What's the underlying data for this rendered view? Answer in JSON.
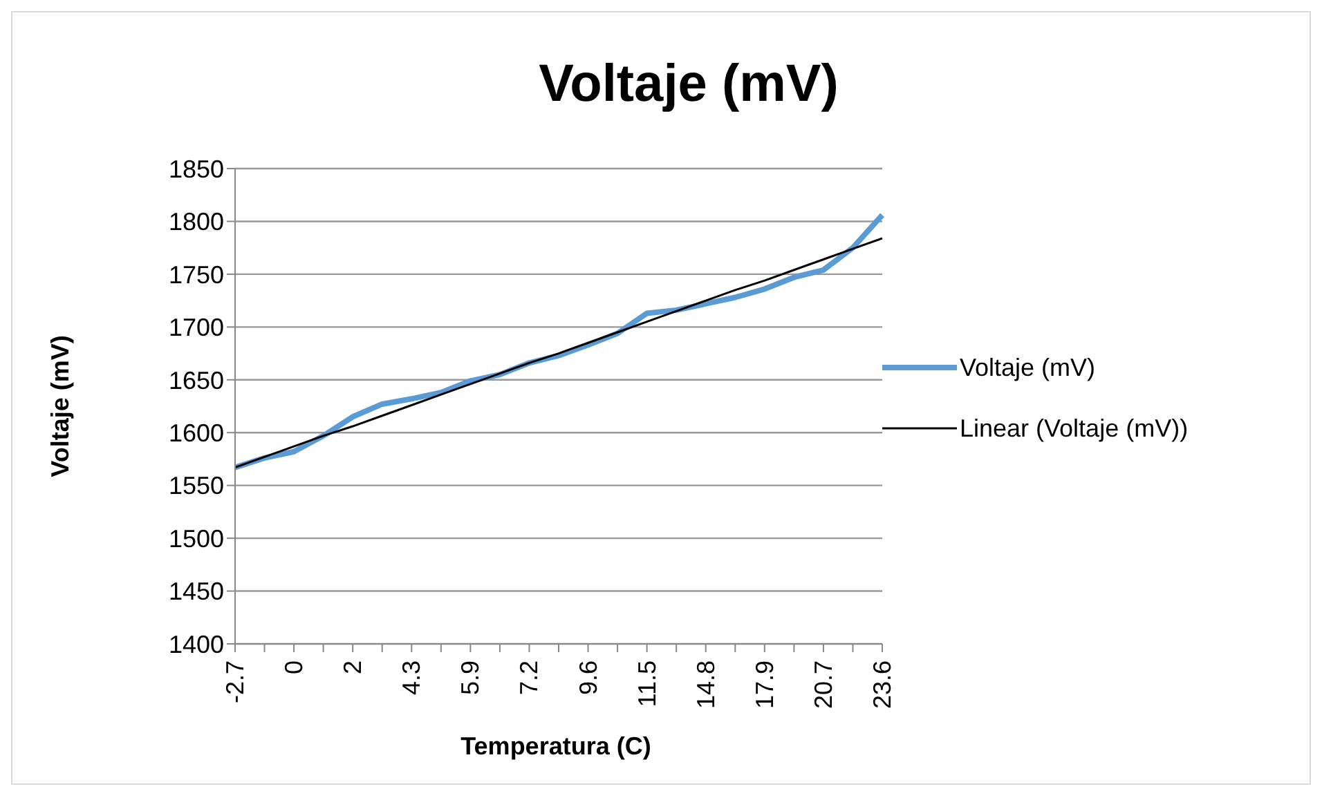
{
  "chart_data": {
    "type": "line",
    "title": "Voltaje (mV)",
    "xlabel": "Temperatura (C)",
    "ylabel": "Voltaje (mV)",
    "categories": [
      "-2.7",
      null,
      "0",
      null,
      "2",
      null,
      "4.3",
      null,
      "5.9",
      null,
      "7.2",
      null,
      "9.6",
      null,
      "11.5",
      null,
      "14.8",
      null,
      "17.9",
      null,
      "20.7",
      null,
      "23.6"
    ],
    "series": [
      {
        "name": "Voltaje (mV)",
        "color": "#5b9bd5",
        "values": [
          1567,
          1576,
          1582,
          1597,
          1615,
          1627,
          1632,
          1638,
          1649,
          1655,
          1666,
          1673,
          1683,
          1694,
          1713,
          1716,
          1722,
          1728,
          1736,
          1747,
          1754,
          1775,
          1806
        ]
      },
      {
        "name": "Linear (Voltaje (mV))",
        "color": "#000000",
        "values": [
          1567,
          1577,
          1587,
          1597,
          1606,
          1616,
          1626,
          1636,
          1646,
          1656,
          1666,
          1675,
          1685,
          1695,
          1705,
          1715,
          1725,
          1735,
          1744,
          1754,
          1764,
          1774,
          1784
        ]
      }
    ],
    "ylim": [
      1400,
      1850
    ],
    "yticks": [
      1400,
      1450,
      1500,
      1550,
      1600,
      1650,
      1700,
      1750,
      1800,
      1850
    ],
    "grid": "y",
    "legend": "right",
    "marker": "none",
    "line_style": "solid"
  }
}
